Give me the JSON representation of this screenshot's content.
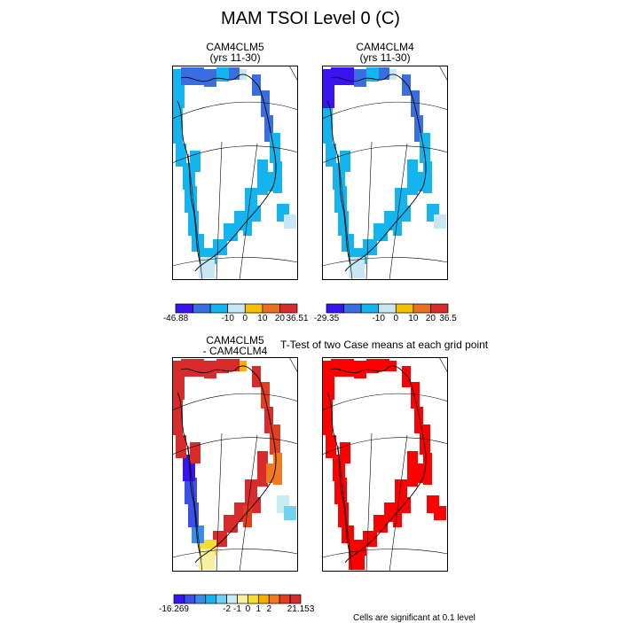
{
  "title": "MAM TSOI Level 0 (C)",
  "panels": [
    {
      "title1": "CAM4CLM5",
      "title2": "(yrs 11-30)"
    },
    {
      "title1": "CAM4CLM4",
      "title2": "(yrs 11-30)"
    },
    {
      "title1": "CAM4CLM5",
      "title2": "- CAM4CLM4"
    },
    {
      "title1": "",
      "title2": ""
    }
  ],
  "ttest_title": "T-Test of two Case means at each grid point",
  "note": "Cells are significant at 0.1 level",
  "colors": {
    "p1": [
      "#3a14f0",
      "#3a6ee0",
      "#14b4ee",
      "#c8e6f4",
      "#f4c000",
      "#e87020",
      "#d82c2c"
    ],
    "p3": [
      "#3a14f0",
      "#3a50e6",
      "#3a8ce6",
      "#14b4ee",
      "#6ed2f0",
      "#c8ecf4",
      "#f8f0a0",
      "#f4dc30",
      "#f4b000",
      "#f07a20",
      "#e04020",
      "#d82c2c"
    ],
    "sig": "#ff0000"
  },
  "chart_data": [
    {
      "type": "heatmap",
      "title": "CAM4CLM5",
      "subtitle": "(yrs 11-30)",
      "legend_labels": [
        "-46.88",
        "-10",
        "0",
        "10",
        "20",
        "36.51"
      ]
    },
    {
      "type": "heatmap",
      "title": "CAM4CLM4",
      "subtitle": "(yrs 11-30)",
      "legend_labels": [
        "-29.35",
        "-10",
        "0",
        "10",
        "20",
        "36.5"
      ]
    },
    {
      "type": "heatmap",
      "title": "CAM4CLM5",
      "subtitle": "- CAM4CLM4",
      "legend_labels": [
        "-16.269",
        "-2",
        "-1",
        "0",
        "1",
        "2",
        "21.153"
      ]
    },
    {
      "type": "heatmap",
      "title": "T-Test of two Case means at each grid point",
      "annotation": "Cells are significant at 0.1 level"
    }
  ]
}
